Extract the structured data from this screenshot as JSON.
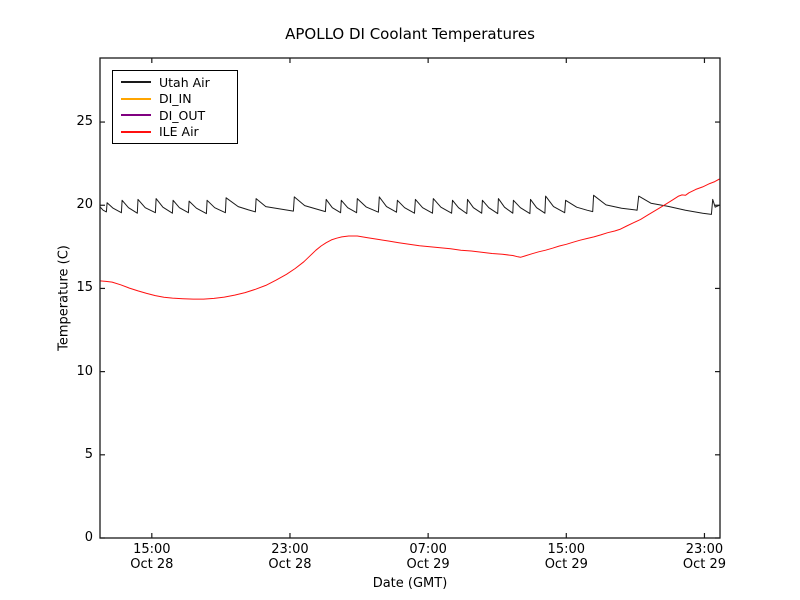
{
  "chart_data": {
    "type": "line",
    "title": "APOLLO DI Coolant Temperatures",
    "xlabel": "Date (GMT)",
    "ylabel": "Temperature (C)",
    "x_unit": "hours since Oct 28 12:00 GMT",
    "xlim": [
      0,
      35.9
    ],
    "ylim": [
      0,
      28.85
    ],
    "grid": false,
    "legend_position": "upper left",
    "yticks": [
      0,
      5,
      10,
      15,
      20,
      25
    ],
    "xticks": [
      {
        "t": 3,
        "time": "15:00",
        "date": "Oct 28"
      },
      {
        "t": 11,
        "time": "23:00",
        "date": "Oct 28"
      },
      {
        "t": 19,
        "time": "07:00",
        "date": "Oct 29"
      },
      {
        "t": 27,
        "time": "15:00",
        "date": "Oct 29"
      },
      {
        "t": 35,
        "time": "23:00",
        "date": "Oct 29"
      }
    ],
    "series": [
      {
        "name": "Utah Air",
        "color": "#1a1a1a",
        "points": [
          [
            0,
            19.9
          ],
          [
            0.18,
            19.7
          ],
          [
            0.37,
            19.6
          ],
          [
            0.41,
            20.15
          ],
          [
            0.76,
            19.82
          ],
          [
            1.24,
            19.55
          ],
          [
            1.28,
            20.3
          ],
          [
            1.65,
            19.85
          ],
          [
            2.16,
            19.52
          ],
          [
            2.2,
            20.35
          ],
          [
            2.62,
            19.85
          ],
          [
            3.21,
            19.55
          ],
          [
            3.25,
            20.4
          ],
          [
            3.64,
            19.88
          ],
          [
            4.19,
            19.52
          ],
          [
            4.23,
            20.3
          ],
          [
            4.6,
            19.85
          ],
          [
            5.12,
            19.55
          ],
          [
            5.16,
            20.25
          ],
          [
            5.58,
            19.82
          ],
          [
            6.16,
            19.5
          ],
          [
            6.2,
            20.3
          ],
          [
            6.64,
            19.85
          ],
          [
            7.26,
            19.55
          ],
          [
            7.3,
            20.45
          ],
          [
            8.0,
            19.92
          ],
          [
            8.6,
            19.72
          ],
          [
            9.0,
            19.6
          ],
          [
            9.04,
            20.4
          ],
          [
            9.6,
            19.92
          ],
          [
            10.4,
            19.78
          ],
          [
            11.2,
            19.65
          ],
          [
            11.25,
            20.5
          ],
          [
            11.85,
            19.98
          ],
          [
            12.5,
            19.78
          ],
          [
            13.05,
            19.62
          ],
          [
            13.1,
            20.35
          ],
          [
            13.45,
            19.85
          ],
          [
            13.93,
            19.55
          ],
          [
            13.97,
            20.3
          ],
          [
            14.34,
            19.85
          ],
          [
            14.86,
            19.55
          ],
          [
            14.9,
            20.4
          ],
          [
            15.41,
            19.9
          ],
          [
            16.12,
            19.58
          ],
          [
            16.17,
            20.5
          ],
          [
            16.59,
            19.92
          ],
          [
            17.17,
            19.58
          ],
          [
            17.22,
            20.3
          ],
          [
            17.64,
            19.85
          ],
          [
            18.21,
            19.52
          ],
          [
            18.26,
            20.35
          ],
          [
            18.68,
            19.85
          ],
          [
            19.25,
            19.52
          ],
          [
            19.3,
            20.4
          ],
          [
            19.74,
            19.88
          ],
          [
            20.36,
            19.52
          ],
          [
            20.41,
            20.3
          ],
          [
            20.76,
            19.85
          ],
          [
            21.24,
            19.5
          ],
          [
            21.28,
            20.35
          ],
          [
            21.62,
            19.85
          ],
          [
            22.1,
            19.52
          ],
          [
            22.14,
            20.3
          ],
          [
            22.51,
            19.85
          ],
          [
            23.03,
            19.5
          ],
          [
            23.07,
            20.4
          ],
          [
            23.42,
            19.88
          ],
          [
            23.9,
            19.52
          ],
          [
            23.94,
            20.3
          ],
          [
            24.34,
            19.85
          ],
          [
            24.89,
            19.5
          ],
          [
            24.93,
            20.35
          ],
          [
            25.28,
            19.85
          ],
          [
            25.76,
            19.52
          ],
          [
            25.8,
            20.55
          ],
          [
            26.26,
            19.92
          ],
          [
            26.91,
            19.55
          ],
          [
            26.96,
            20.3
          ],
          [
            27.6,
            19.88
          ],
          [
            28.2,
            19.7
          ],
          [
            28.53,
            19.62
          ],
          [
            28.58,
            20.6
          ],
          [
            29.3,
            20.02
          ],
          [
            30.2,
            19.82
          ],
          [
            31.1,
            19.7
          ],
          [
            31.19,
            20.55
          ],
          [
            31.9,
            20.12
          ],
          [
            32.9,
            19.93
          ],
          [
            33.9,
            19.7
          ],
          [
            34.9,
            19.52
          ],
          [
            35.4,
            19.45
          ],
          [
            35.48,
            20.35
          ],
          [
            35.62,
            19.88
          ],
          [
            35.87,
            20.0
          ]
        ]
      },
      {
        "name": "DI_IN",
        "color": "#ffa500",
        "points": []
      },
      {
        "name": "DI_OUT",
        "color": "#800080",
        "points": []
      },
      {
        "name": "ILE Air",
        "color": "#ff1010",
        "points": [
          [
            0,
            15.45
          ],
          [
            0.35,
            15.42
          ],
          [
            0.7,
            15.38
          ],
          [
            1.2,
            15.22
          ],
          [
            1.7,
            15.02
          ],
          [
            2.2,
            14.85
          ],
          [
            2.7,
            14.7
          ],
          [
            3.2,
            14.57
          ],
          [
            3.7,
            14.47
          ],
          [
            4.2,
            14.42
          ],
          [
            4.8,
            14.38
          ],
          [
            5.4,
            14.36
          ],
          [
            6.0,
            14.36
          ],
          [
            6.6,
            14.4
          ],
          [
            7.2,
            14.48
          ],
          [
            7.8,
            14.6
          ],
          [
            8.4,
            14.75
          ],
          [
            9.0,
            14.95
          ],
          [
            9.6,
            15.18
          ],
          [
            10.2,
            15.5
          ],
          [
            10.8,
            15.85
          ],
          [
            11.3,
            16.2
          ],
          [
            11.8,
            16.6
          ],
          [
            12.2,
            17.0
          ],
          [
            12.5,
            17.3
          ],
          [
            12.8,
            17.55
          ],
          [
            13.1,
            17.75
          ],
          [
            13.4,
            17.92
          ],
          [
            13.7,
            18.02
          ],
          [
            14.0,
            18.1
          ],
          [
            14.4,
            18.15
          ],
          [
            14.9,
            18.15
          ],
          [
            15.5,
            18.05
          ],
          [
            16.1,
            17.95
          ],
          [
            16.7,
            17.85
          ],
          [
            17.3,
            17.75
          ],
          [
            17.9,
            17.65
          ],
          [
            18.5,
            17.57
          ],
          [
            19.1,
            17.5
          ],
          [
            19.7,
            17.45
          ],
          [
            20.3,
            17.38
          ],
          [
            20.9,
            17.3
          ],
          [
            21.5,
            17.25
          ],
          [
            22.1,
            17.18
          ],
          [
            22.7,
            17.1
          ],
          [
            23.3,
            17.05
          ],
          [
            23.9,
            16.98
          ],
          [
            24.2,
            16.9
          ],
          [
            24.35,
            16.87
          ],
          [
            24.6,
            16.95
          ],
          [
            25.0,
            17.08
          ],
          [
            25.4,
            17.2
          ],
          [
            25.8,
            17.3
          ],
          [
            26.2,
            17.42
          ],
          [
            26.6,
            17.55
          ],
          [
            27.0,
            17.65
          ],
          [
            27.4,
            17.78
          ],
          [
            27.8,
            17.9
          ],
          [
            28.2,
            18.0
          ],
          [
            28.6,
            18.1
          ],
          [
            29.0,
            18.22
          ],
          [
            29.4,
            18.35
          ],
          [
            29.8,
            18.45
          ],
          [
            30.1,
            18.55
          ],
          [
            30.5,
            18.75
          ],
          [
            30.9,
            18.95
          ],
          [
            31.3,
            19.15
          ],
          [
            31.7,
            19.4
          ],
          [
            32.1,
            19.65
          ],
          [
            32.5,
            19.9
          ],
          [
            32.9,
            20.15
          ],
          [
            33.2,
            20.35
          ],
          [
            33.5,
            20.55
          ],
          [
            33.7,
            20.62
          ],
          [
            33.9,
            20.6
          ],
          [
            34.1,
            20.75
          ],
          [
            34.5,
            20.95
          ],
          [
            34.9,
            21.1
          ],
          [
            35.3,
            21.3
          ],
          [
            35.6,
            21.42
          ],
          [
            35.87,
            21.58
          ]
        ]
      }
    ]
  }
}
